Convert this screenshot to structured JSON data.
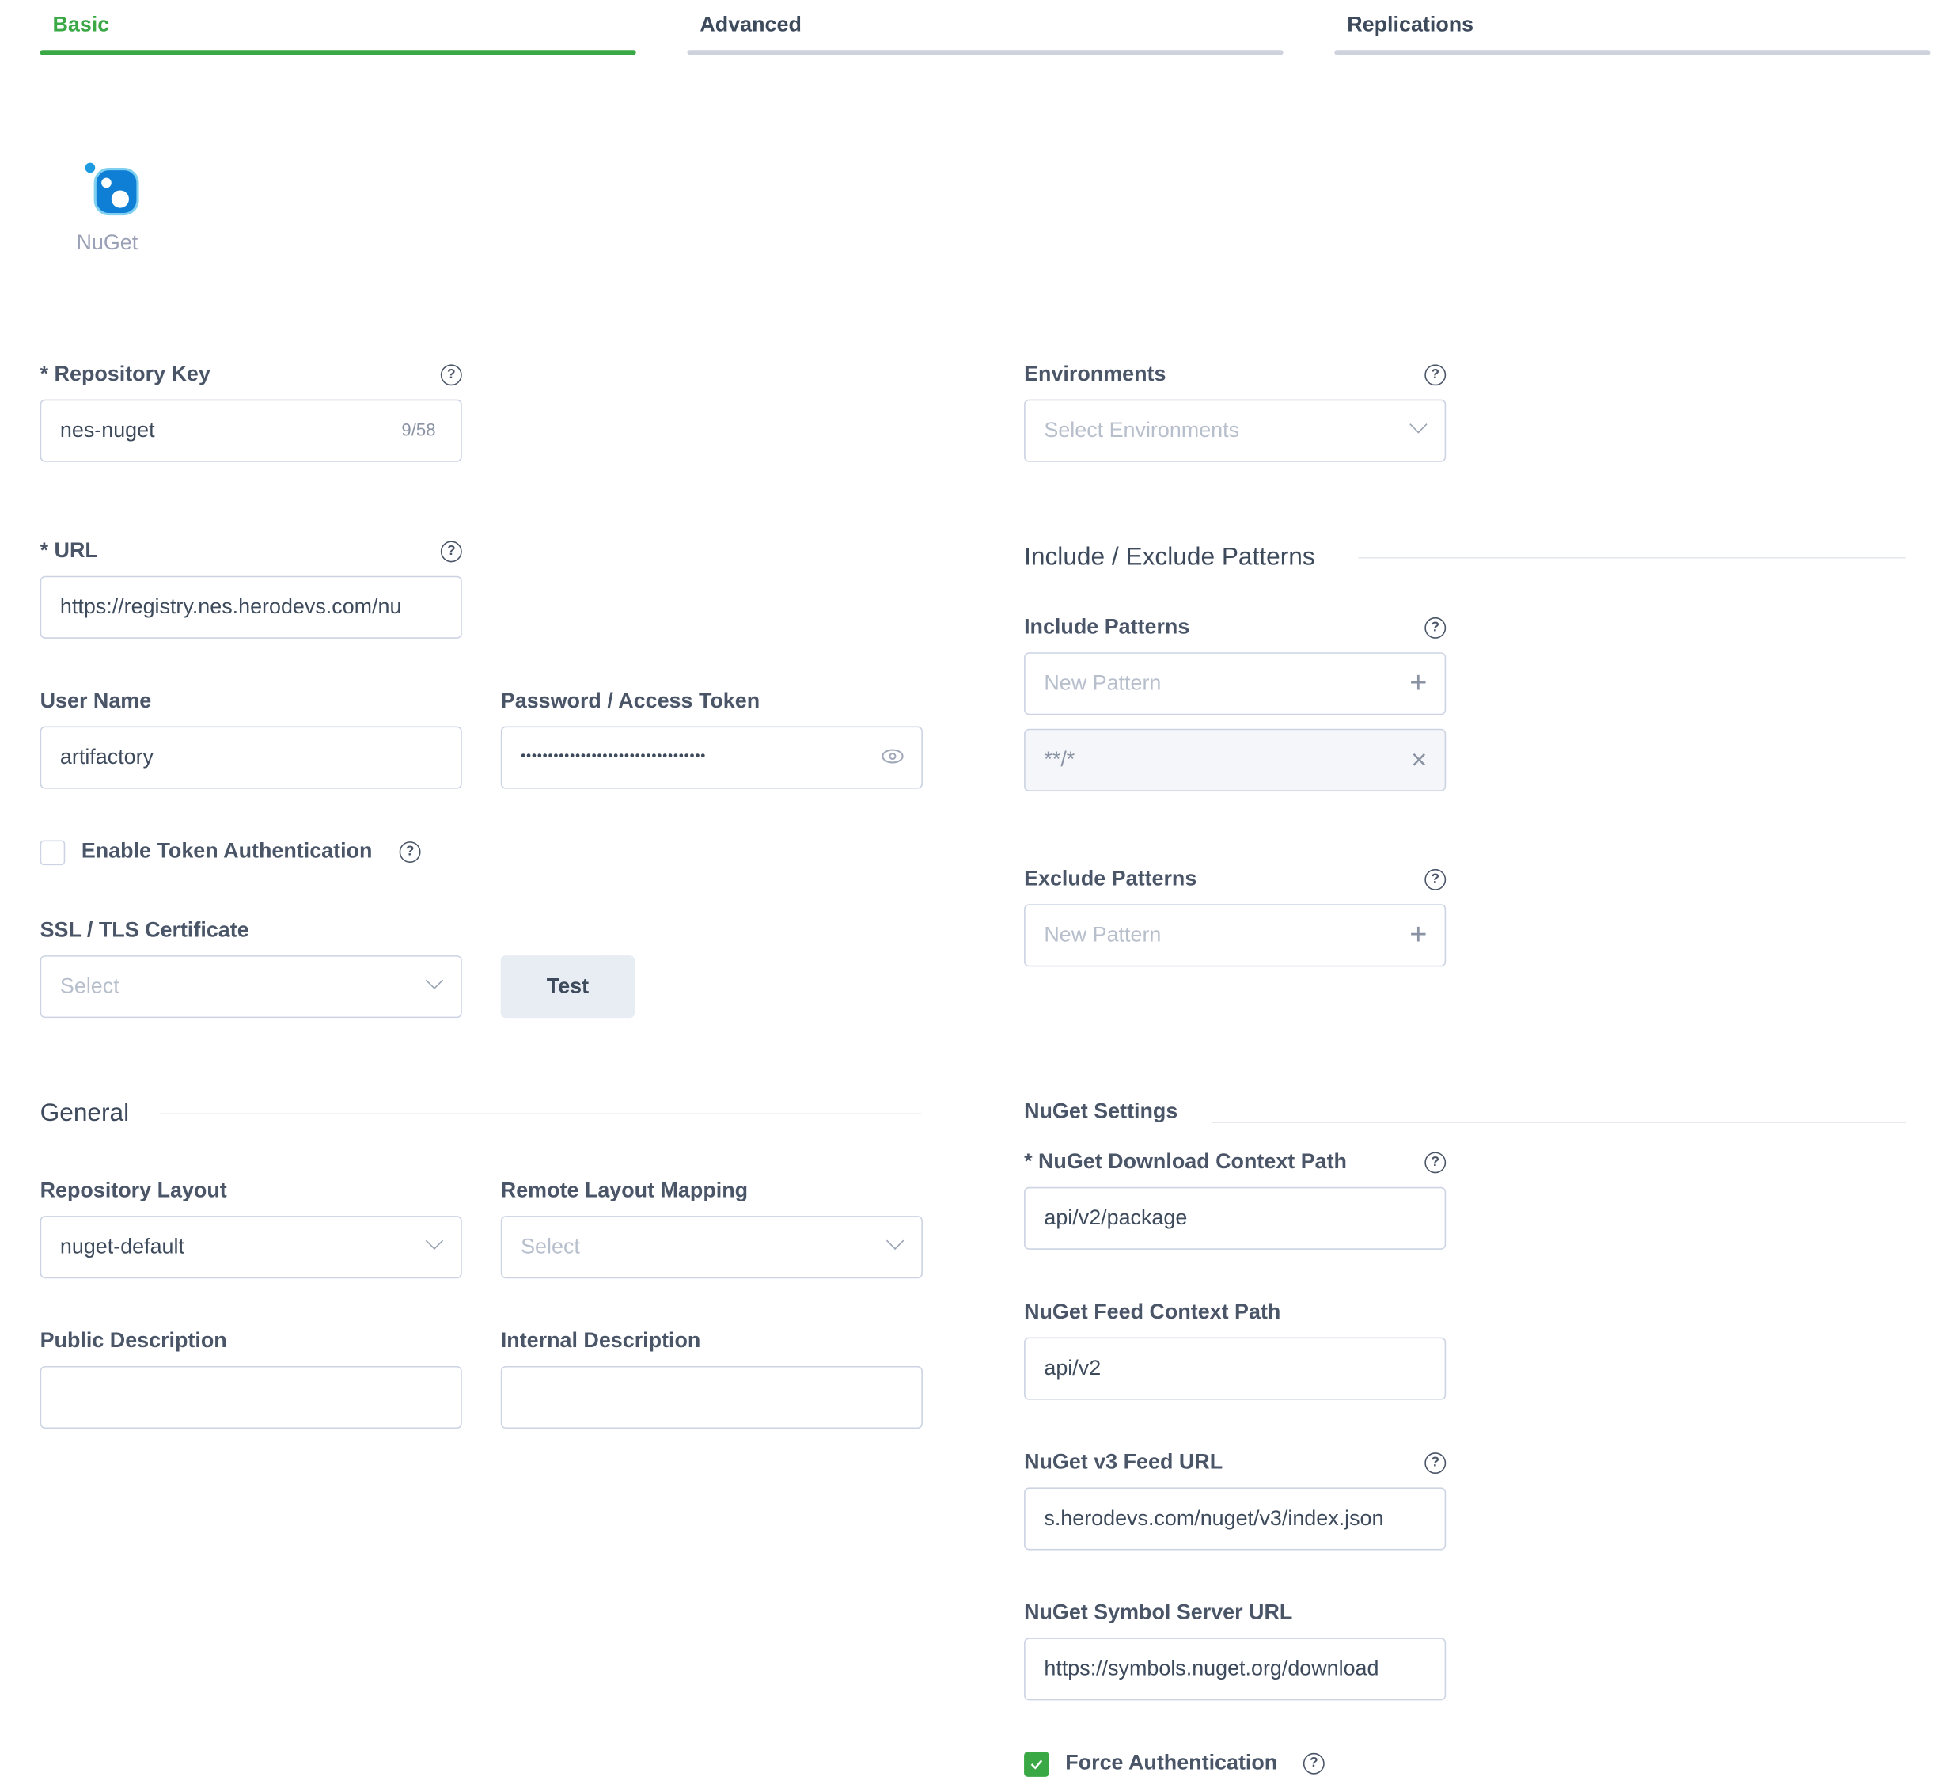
{
  "tabs": [
    {
      "label": "Basic",
      "active": true
    },
    {
      "label": "Advanced"
    },
    {
      "label": "Replications"
    }
  ],
  "package": {
    "name": "NuGet",
    "icon": "nuget-logo"
  },
  "colors": {
    "accent": "#3aa845",
    "border": "#ccd3e3"
  },
  "left": {
    "repo_key": {
      "label": "* Repository Key",
      "value": "nes-nuget",
      "counter": "9/58"
    },
    "url": {
      "label": "* URL",
      "value": "https://registry.nes.herodevs.com/nu"
    },
    "username": {
      "label": "User Name",
      "value": "artifactory"
    },
    "password": {
      "label": "Password / Access Token",
      "value": "••••••••••••••••••••••••••••••••••"
    },
    "token_auth": {
      "label": "Enable Token Authentication",
      "checked": false
    },
    "ssl": {
      "label": "SSL / TLS Certificate",
      "placeholder": "Select"
    },
    "test_button": "Test",
    "general": "General",
    "repo_layout": {
      "label": "Repository Layout",
      "value": "nuget-default"
    },
    "remote_layout": {
      "label": "Remote Layout Mapping",
      "placeholder": "Select"
    },
    "public_desc": {
      "label": "Public Description",
      "value": ""
    },
    "internal_desc": {
      "label": "Internal Description",
      "value": ""
    }
  },
  "right": {
    "environments": {
      "label": "Environments",
      "placeholder": "Select Environments"
    },
    "patterns_heading": "Include / Exclude Patterns",
    "include": {
      "label": "Include Patterns",
      "placeholder": "New Pattern",
      "items": [
        "**/*"
      ]
    },
    "exclude": {
      "label": "Exclude Patterns",
      "placeholder": "New Pattern"
    },
    "nuget_heading": "NuGet Settings",
    "download_path": {
      "label": "* NuGet Download Context Path",
      "value": "api/v2/package"
    },
    "feed_path": {
      "label": "NuGet Feed Context Path",
      "value": "api/v2"
    },
    "v3_feed": {
      "label": "NuGet v3 Feed URL",
      "value": "s.herodevs.com/nuget/v3/index.json"
    },
    "symbol_server": {
      "label": "NuGet Symbol Server URL",
      "value": "https://symbols.nuget.org/download"
    },
    "force_auth": {
      "label": "Force Authentication",
      "checked": true
    }
  }
}
